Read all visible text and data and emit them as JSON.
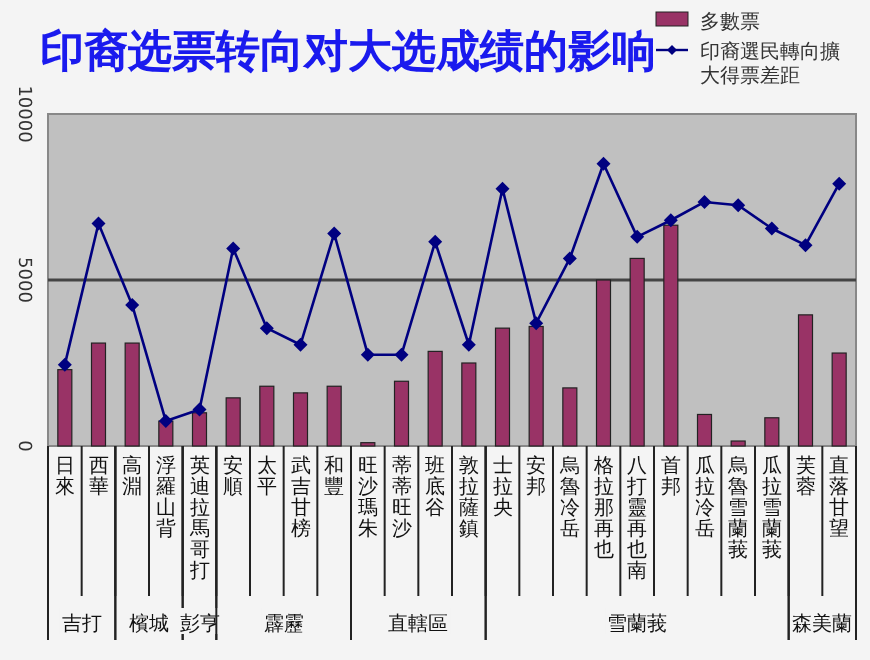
{
  "chart_data": {
    "type": "bar",
    "title": "印裔选票转向对大选成绩的影响",
    "categories": [
      "日來",
      "西華",
      "高淵",
      "浮羅山背",
      "英迪拉馬哥打",
      "安順",
      "太平",
      "武吉甘榜",
      "和豐",
      "旺沙瑪朱",
      "蒂蒂旺沙",
      "班底谷",
      "敦拉薩鎮",
      "士拉央",
      "安邦",
      "烏魯冷岳",
      "格拉那再也",
      "八打靈再也南",
      "首邦",
      "瓜拉冷岳",
      "烏魯雪蘭莪",
      "瓜拉雪蘭莪",
      "芙蓉",
      "直落甘望"
    ],
    "series": [
      {
        "name": "多數票",
        "color": "#993366",
        "values": [
          2300,
          3100,
          3100,
          750,
          1000,
          1450,
          1800,
          1600,
          1800,
          100,
          1950,
          2850,
          2500,
          3550,
          3600,
          1750,
          5000,
          5650,
          6650,
          950,
          150,
          850,
          3950,
          2800
        ]
      },
      {
        "name": "印裔選民轉向擴大得票差距",
        "type": "line",
        "color": "#000080",
        "marker": "diamond",
        "values": [
          2450,
          6700,
          4250,
          750,
          1100,
          5950,
          3550,
          3050,
          6400,
          2750,
          2750,
          6150,
          3050,
          7750,
          3700,
          5650,
          8500,
          6300,
          6800,
          7350,
          7250,
          6550,
          6050,
          7900
        ]
      }
    ],
    "ylim": [
      0,
      10000
    ],
    "yticks": [
      0,
      5000,
      10000
    ],
    "grid": "y",
    "legend": "top right",
    "annotations": [
      "吉打",
      "檳城",
      "彭亨",
      "霹靂",
      "直轄區",
      "雪蘭莪",
      "森美蘭"
    ]
  }
}
